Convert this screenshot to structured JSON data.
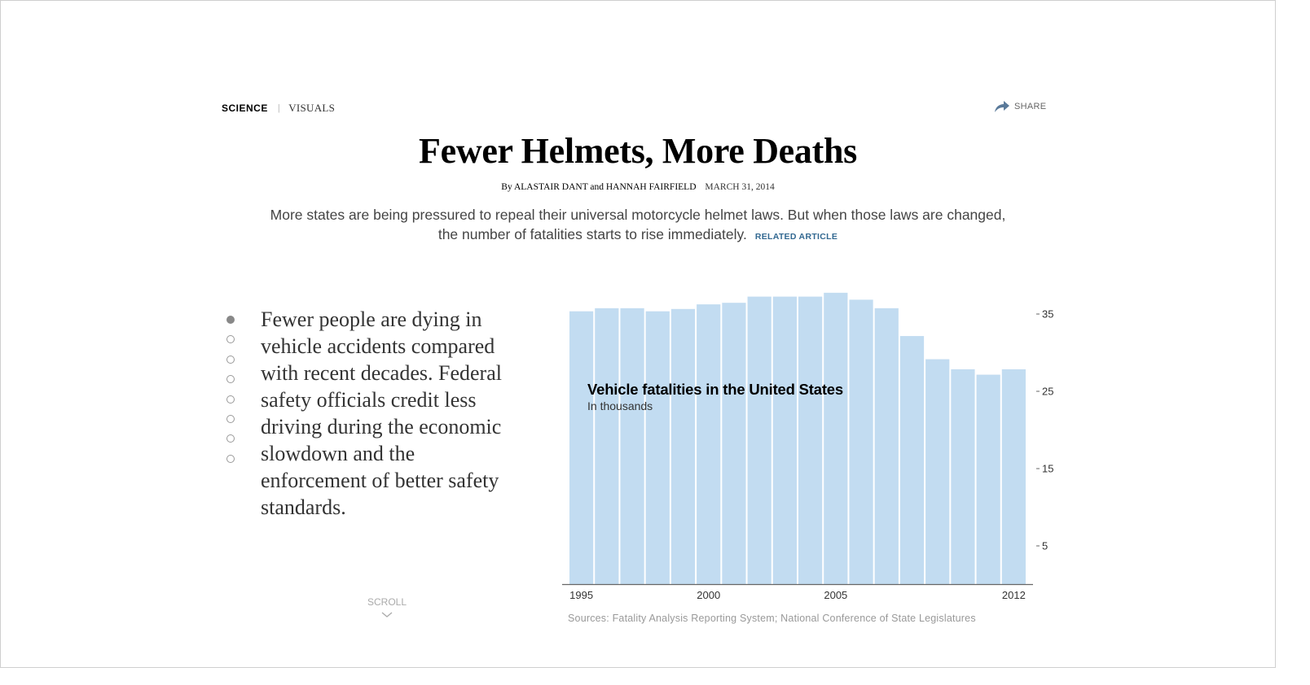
{
  "nav": {
    "section": "SCIENCE",
    "divider": "|",
    "subsection": "VISUALS",
    "share_label": "SHARE",
    "share_icon": "share-arrow-icon"
  },
  "article": {
    "headline": "Fewer Helmets, More Deaths",
    "byline_prefix": "By",
    "author_1": "ALASTAIR DANT",
    "byline_and": "and",
    "author_2": "HANNAH FAIRFIELD",
    "date": "MARCH 31, 2014",
    "summary": "More states are being pressured to repeal their universal motorcycle helmet laws. But when those laws are changed, the number of fatalities starts to rise immediately.",
    "related_label": "RELATED ARTICLE"
  },
  "steps": {
    "count": 8,
    "active_index": 0,
    "current_text": "Fewer people are dying in vehicle accidents compared with recent decades. Federal safety officials credit less driving during the economic slowdown and the enforcement of better safety standards.",
    "scroll_label": "SCROLL"
  },
  "colors": {
    "bar": "#c2dcf1",
    "text": "#333333",
    "accent_link": "#326891",
    "axis": "#666666"
  },
  "chart_data": {
    "type": "bar",
    "title": "Vehicle fatalities in the United States",
    "subtitle": "In thousands",
    "categories": [
      1995,
      1996,
      1997,
      1998,
      1999,
      2000,
      2001,
      2002,
      2003,
      2004,
      2005,
      2006,
      2007,
      2008,
      2009,
      2010,
      2011,
      2012
    ],
    "values": [
      35.3,
      35.7,
      35.7,
      35.3,
      35.6,
      36.2,
      36.4,
      37.2,
      37.2,
      37.2,
      37.7,
      36.8,
      35.7,
      32.1,
      29.1,
      27.8,
      27.1,
      27.8
    ],
    "x_tick_labels": [
      "1995",
      "2000",
      "2005",
      "2012"
    ],
    "y_ticks": [
      5,
      15,
      25,
      35
    ],
    "ylim": [
      0,
      40
    ],
    "grid": false,
    "source": "Sources: Fatality Analysis Reporting System; National Conference of State Legislatures"
  }
}
